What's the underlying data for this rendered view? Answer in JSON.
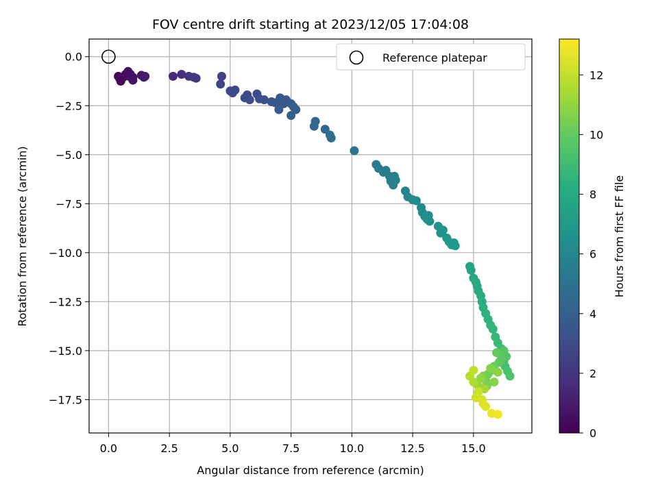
{
  "chart_data": {
    "type": "scatter",
    "title": "FOV centre drift starting at 2023/12/05 17:04:08",
    "xlabel": "Angular distance from reference (arcmin)",
    "ylabel": "Rotation from reference (arcmin)",
    "xlim": [
      -0.8,
      17.4
    ],
    "ylim": [
      -19.2,
      0.9
    ],
    "xticks": [
      0,
      2.5,
      5,
      7.5,
      10,
      12.5,
      15
    ],
    "xtick_labels": [
      "0.0",
      "2.5",
      "5.0",
      "7.5",
      "10.0",
      "12.5",
      "15.0"
    ],
    "yticks": [
      0,
      -2.5,
      -5,
      -7.5,
      -10,
      -12.5,
      -15,
      -17.5
    ],
    "ytick_labels": [
      "0.0",
      "−2.5",
      "−5.0",
      "−7.5",
      "−10.0",
      "−12.5",
      "−15.0",
      "−17.5"
    ],
    "grid": true,
    "legend": {
      "label": "Reference platepar",
      "placement": "top-right"
    },
    "reference_point": {
      "x": 0.0,
      "y": 0.0
    },
    "colorbar": {
      "label": "Hours from first FF file",
      "colormap": "viridis",
      "range": [
        0,
        13.2
      ],
      "ticks": [
        0,
        2,
        4,
        6,
        8,
        10,
        12
      ],
      "tick_labels": [
        "0",
        "2",
        "4",
        "6",
        "8",
        "10",
        "12"
      ]
    },
    "points": [
      [
        0.4,
        -1.0,
        0.1
      ],
      [
        0.5,
        -1.25,
        0.2
      ],
      [
        0.45,
        -1.1,
        0.25
      ],
      [
        0.6,
        -1.05,
        0.3
      ],
      [
        0.7,
        -0.9,
        0.4
      ],
      [
        0.8,
        -0.75,
        0.45
      ],
      [
        0.9,
        -0.9,
        0.5
      ],
      [
        1.0,
        -1.05,
        0.55
      ],
      [
        0.85,
        -1.0,
        0.6
      ],
      [
        1.0,
        -1.2,
        0.65
      ],
      [
        1.35,
        -0.95,
        0.8
      ],
      [
        1.45,
        -1.05,
        0.9
      ],
      [
        1.5,
        -1.0,
        1.0
      ],
      [
        2.65,
        -1.0,
        1.7
      ],
      [
        3.0,
        -0.9,
        1.85
      ],
      [
        3.3,
        -1.0,
        2.0
      ],
      [
        3.5,
        -1.05,
        2.1
      ],
      [
        3.6,
        -1.1,
        2.15
      ],
      [
        4.65,
        -1.0,
        2.6
      ],
      [
        4.6,
        -1.4,
        2.65
      ],
      [
        5.0,
        -1.75,
        2.8
      ],
      [
        5.2,
        -1.7,
        2.85
      ],
      [
        5.1,
        -1.85,
        2.9
      ],
      [
        5.7,
        -1.95,
        3.0
      ],
      [
        5.6,
        -2.1,
        3.05
      ],
      [
        5.8,
        -2.2,
        3.1
      ],
      [
        6.1,
        -1.9,
        3.15
      ],
      [
        6.2,
        -2.15,
        3.2
      ],
      [
        6.4,
        -2.2,
        3.3
      ],
      [
        6.7,
        -2.3,
        3.4
      ],
      [
        6.85,
        -2.35,
        3.5
      ],
      [
        7.0,
        -2.3,
        3.55
      ],
      [
        7.05,
        -2.1,
        3.6
      ],
      [
        7.2,
        -2.4,
        3.65
      ],
      [
        7.3,
        -2.2,
        3.7
      ],
      [
        7.0,
        -2.7,
        3.75
      ],
      [
        7.5,
        -2.4,
        3.8
      ],
      [
        7.6,
        -2.55,
        3.85
      ],
      [
        7.7,
        -2.7,
        3.9
      ],
      [
        7.5,
        -3.0,
        3.95
      ],
      [
        8.45,
        -3.55,
        4.3
      ],
      [
        8.5,
        -3.3,
        4.35
      ],
      [
        8.9,
        -3.7,
        4.5
      ],
      [
        9.1,
        -4.0,
        4.6
      ],
      [
        9.15,
        -4.15,
        4.65
      ],
      [
        10.1,
        -4.8,
        5.0
      ],
      [
        11.0,
        -5.5,
        5.4
      ],
      [
        11.1,
        -5.7,
        5.45
      ],
      [
        11.3,
        -5.9,
        5.5
      ],
      [
        11.4,
        -5.8,
        5.55
      ],
      [
        11.55,
        -6.1,
        5.6
      ],
      [
        11.6,
        -6.35,
        5.65
      ],
      [
        11.75,
        -6.1,
        5.7
      ],
      [
        11.8,
        -6.3,
        5.75
      ],
      [
        11.7,
        -6.55,
        5.8
      ],
      [
        12.2,
        -6.85,
        6.0
      ],
      [
        12.3,
        -7.15,
        6.1
      ],
      [
        12.5,
        -7.3,
        6.2
      ],
      [
        12.65,
        -7.35,
        6.25
      ],
      [
        12.85,
        -7.7,
        6.3
      ],
      [
        12.9,
        -7.95,
        6.35
      ],
      [
        13.0,
        -8.15,
        6.4
      ],
      [
        13.1,
        -8.3,
        6.45
      ],
      [
        13.15,
        -8.1,
        6.5
      ],
      [
        13.2,
        -8.4,
        6.55
      ],
      [
        13.55,
        -8.65,
        6.7
      ],
      [
        13.65,
        -9.0,
        6.75
      ],
      [
        13.75,
        -8.85,
        6.8
      ],
      [
        13.9,
        -9.25,
        6.9
      ],
      [
        14.0,
        -9.45,
        6.95
      ],
      [
        14.1,
        -9.6,
        7.0
      ],
      [
        14.2,
        -9.5,
        7.05
      ],
      [
        14.25,
        -9.65,
        7.1
      ],
      [
        14.85,
        -10.7,
        7.6
      ],
      [
        14.9,
        -10.9,
        7.7
      ],
      [
        15.0,
        -11.3,
        7.8
      ],
      [
        15.1,
        -11.5,
        7.9
      ],
      [
        15.15,
        -11.7,
        7.95
      ],
      [
        15.2,
        -11.95,
        8.0
      ],
      [
        15.3,
        -12.2,
        8.1
      ],
      [
        15.35,
        -12.5,
        8.2
      ],
      [
        15.4,
        -12.8,
        8.3
      ],
      [
        15.5,
        -13.1,
        8.4
      ],
      [
        15.6,
        -13.4,
        8.5
      ],
      [
        15.7,
        -13.7,
        8.6
      ],
      [
        15.8,
        -13.9,
        8.7
      ],
      [
        15.9,
        -14.3,
        8.8
      ],
      [
        16.0,
        -14.6,
        8.9
      ],
      [
        16.15,
        -14.9,
        9.0
      ],
      [
        16.2,
        -15.2,
        9.1
      ],
      [
        16.25,
        -15.5,
        9.2
      ],
      [
        16.3,
        -15.8,
        9.3
      ],
      [
        16.4,
        -16.05,
        9.4
      ],
      [
        16.5,
        -16.3,
        9.5
      ],
      [
        16.35,
        -15.3,
        9.6
      ],
      [
        16.25,
        -15.0,
        9.7
      ],
      [
        16.15,
        -15.4,
        9.8
      ],
      [
        16.05,
        -15.6,
        9.9
      ],
      [
        15.95,
        -15.1,
        10.0
      ],
      [
        15.85,
        -15.8,
        10.1
      ],
      [
        15.75,
        -16.0,
        10.2
      ],
      [
        15.6,
        -16.2,
        10.3
      ],
      [
        15.5,
        -16.5,
        10.4
      ],
      [
        15.4,
        -16.3,
        10.5
      ],
      [
        15.55,
        -16.8,
        10.6
      ],
      [
        15.7,
        -15.9,
        10.7
      ],
      [
        15.85,
        -16.6,
        10.8
      ],
      [
        16.0,
        -16.1,
        10.9
      ],
      [
        15.3,
        -16.4,
        11.0
      ],
      [
        15.2,
        -16.8,
        11.2
      ],
      [
        15.45,
        -16.95,
        11.4
      ],
      [
        15.0,
        -16.6,
        11.6
      ],
      [
        14.85,
        -16.3,
        11.8
      ],
      [
        15.0,
        -16.0,
        12.0
      ],
      [
        15.2,
        -17.1,
        12.2
      ],
      [
        15.1,
        -17.4,
        12.3
      ],
      [
        15.35,
        -17.5,
        12.4
      ],
      [
        15.4,
        -17.7,
        12.5
      ],
      [
        15.5,
        -17.85,
        12.6
      ],
      [
        15.75,
        -18.2,
        12.8
      ],
      [
        16.0,
        -18.25,
        13.0
      ]
    ]
  }
}
